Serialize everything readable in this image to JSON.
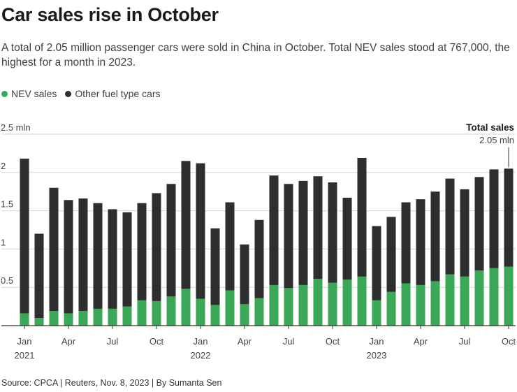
{
  "title": "Car sales rise in October",
  "subtitle": "A total of 2.05 million passenger cars were sold in China in October. Total NEV sales stood at 767,000, the highest for a month in 2023.",
  "colors": {
    "nev": "#3aa856",
    "other": "#2e2e2e",
    "grid": "#d6d6d6",
    "axis": "#333333"
  },
  "legend": [
    {
      "label": "NEV sales",
      "color": "#3aa856"
    },
    {
      "label": "Other fuel type cars",
      "color": "#2e2e2e"
    }
  ],
  "source": "Source: CPCA | Reuters, Nov. 8, 2023 | By Sumanta Sen",
  "chart_data": {
    "type": "bar",
    "stacked": true,
    "unit": "mln",
    "ylim": [
      0,
      2.5
    ],
    "yticks": [
      {
        "value": 0.5,
        "label": "0.5"
      },
      {
        "value": 1,
        "label": "1"
      },
      {
        "value": 1.5,
        "label": "1.5"
      },
      {
        "value": 2,
        "label": "2"
      },
      {
        "value": 2.5,
        "label": "2.5 mln"
      }
    ],
    "categories": [
      "Jan 2021",
      "Feb 2021",
      "Mar 2021",
      "Apr 2021",
      "May 2021",
      "Jun 2021",
      "Jul 2021",
      "Aug 2021",
      "Sep 2021",
      "Oct 2021",
      "Nov 2021",
      "Dec 2021",
      "Jan 2022",
      "Feb 2022",
      "Mar 2022",
      "Apr 2022",
      "May 2022",
      "Jun 2022",
      "Jul 2022",
      "Aug 2022",
      "Sep 2022",
      "Oct 2022",
      "Nov 2022",
      "Dec 2022",
      "Jan 2023",
      "Feb 2023",
      "Mar 2023",
      "Apr 2023",
      "May 2023",
      "Jun 2023",
      "Jul 2023",
      "Aug 2023",
      "Sep 2023",
      "Oct 2023"
    ],
    "xtick_labels": [
      {
        "index": 0,
        "label": "Jan",
        "year": "2021"
      },
      {
        "index": 3,
        "label": "Apr"
      },
      {
        "index": 6,
        "label": "Jul"
      },
      {
        "index": 9,
        "label": "Oct"
      },
      {
        "index": 12,
        "label": "Jan",
        "year": "2022"
      },
      {
        "index": 15,
        "label": "Apr"
      },
      {
        "index": 18,
        "label": "Jul"
      },
      {
        "index": 21,
        "label": "Oct"
      },
      {
        "index": 24,
        "label": "Jan",
        "year": "2023"
      },
      {
        "index": 27,
        "label": "Apr"
      },
      {
        "index": 30,
        "label": "Jul"
      },
      {
        "index": 33,
        "label": "Oct"
      }
    ],
    "series": [
      {
        "name": "NEV sales",
        "values": [
          0.16,
          0.1,
          0.19,
          0.16,
          0.19,
          0.22,
          0.22,
          0.25,
          0.33,
          0.32,
          0.38,
          0.48,
          0.35,
          0.27,
          0.46,
          0.28,
          0.36,
          0.53,
          0.49,
          0.53,
          0.61,
          0.56,
          0.6,
          0.64,
          0.33,
          0.44,
          0.55,
          0.53,
          0.58,
          0.67,
          0.64,
          0.72,
          0.75,
          0.77
        ]
      },
      {
        "name": "Other fuel type cars",
        "values": [
          2.02,
          1.1,
          1.61,
          1.48,
          1.47,
          1.38,
          1.3,
          1.23,
          1.27,
          1.41,
          1.47,
          1.67,
          1.77,
          1.0,
          1.15,
          0.78,
          1.02,
          1.43,
          1.36,
          1.36,
          1.34,
          1.31,
          1.07,
          1.55,
          0.97,
          0.98,
          1.06,
          1.12,
          1.17,
          1.25,
          1.14,
          1.22,
          1.29,
          1.28
        ]
      }
    ],
    "annotation": {
      "index": 33,
      "title": "Total sales",
      "value_label": "2.05 mln"
    }
  }
}
